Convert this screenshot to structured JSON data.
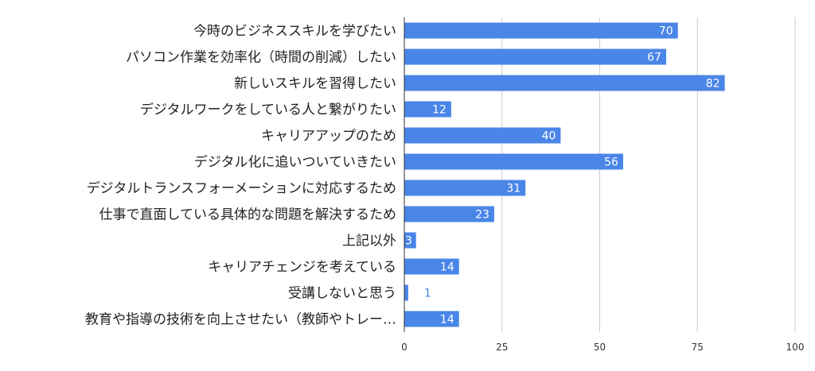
{
  "chart_data": {
    "type": "bar",
    "orientation": "horizontal",
    "categories": [
      "今時のビジネススキルを学びたい",
      "パソコン作業を効率化（時間の削減）したい",
      "新しいスキルを習得したい",
      "デジタルワークをしている人と繋がりたい",
      "キャリアアップのため",
      "デジタル化に追いついていきたい",
      "デジタルトランスフォーメーションに対応するため",
      "仕事で直面している具体的な問題を解決するため",
      "上記以外",
      "キャリアチェンジを考えている",
      "受講しないと思う",
      "教育や指導の技術を向上させたい（教師やトレー…"
    ],
    "values": [
      70,
      67,
      82,
      12,
      40,
      56,
      31,
      23,
      3,
      14,
      1,
      14
    ],
    "xlim": [
      0,
      100
    ],
    "xticks": [
      "0",
      "25",
      "50",
      "75",
      "100"
    ],
    "grid": true,
    "legend": "none",
    "colors": {
      "bar": "#4a86e8",
      "label_inside": "#ffffff",
      "label_outside": "#4a86e8",
      "grid": "#cccccc",
      "axis": "#333333"
    }
  }
}
